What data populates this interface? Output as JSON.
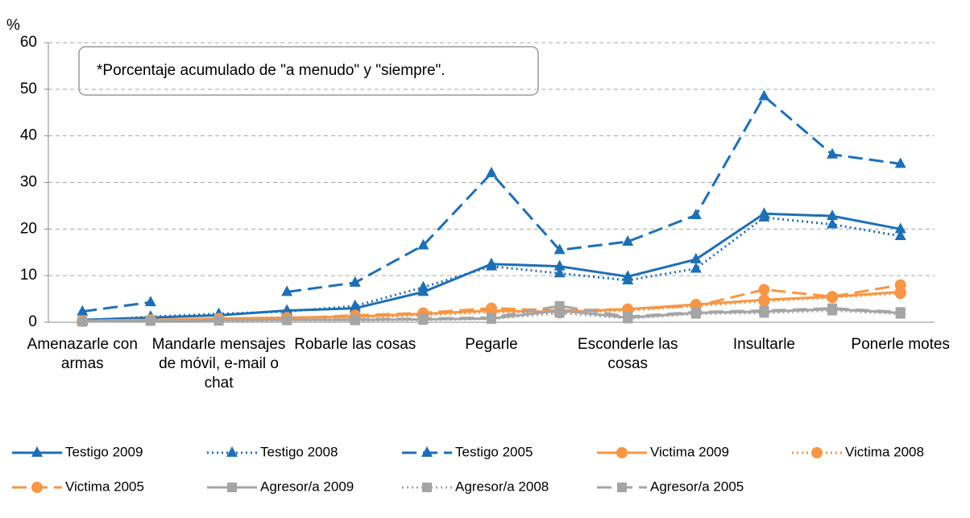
{
  "chart_data": {
    "type": "line",
    "y_label": "%",
    "annotation": "*Porcentaje acumulado de \"a menudo\" y \"siempre\".",
    "categories": [
      "Amenazarle con armas",
      null,
      "Mandarle mensajes de móvil, e-mail o chat",
      null,
      "Robarle las cosas",
      null,
      "Pegarle",
      null,
      "Esconderle las cosas",
      null,
      "Insultarle",
      null,
      "Ponerle motes"
    ],
    "ylim": [
      0,
      60
    ],
    "yticks": [
      0,
      10,
      20,
      30,
      40,
      50,
      60
    ],
    "grid": true,
    "series": [
      {
        "name": "Testigo 2009",
        "color": "#1f6fb4",
        "dash": "solid",
        "marker": "triangle",
        "values": [
          0.5,
          1,
          1.5,
          2.5,
          3,
          6.5,
          12.5,
          12,
          9.8,
          13.5,
          23.3,
          22.8,
          20
        ]
      },
      {
        "name": "Testigo 2008",
        "color": "#1f6fb4",
        "dash": "dotted",
        "marker": "triangle",
        "values": [
          0.3,
          1.2,
          1.8,
          2.3,
          3.5,
          7.5,
          12,
          10.5,
          9,
          11.5,
          22.5,
          21,
          18.5
        ]
      },
      {
        "name": "Testigo 2005",
        "color": "#1f6fb4",
        "dash": "dashed",
        "marker": "triangle",
        "values": [
          2.3,
          4.3,
          null,
          6.5,
          8.5,
          16.5,
          32,
          15.5,
          17.3,
          23,
          48.5,
          36,
          34
        ]
      },
      {
        "name": "Victima 2009",
        "color": "#f79646",
        "dash": "solid",
        "marker": "circle",
        "values": [
          0.3,
          0.5,
          0.8,
          1,
          1.2,
          1.8,
          2.5,
          2.2,
          2.8,
          3.8,
          4.8,
          5.5,
          6.5
        ]
      },
      {
        "name": "Victima 2008",
        "color": "#f79646",
        "dash": "dotted",
        "marker": "circle",
        "values": [
          0.2,
          0.4,
          0.6,
          0.8,
          1,
          1.5,
          2.2,
          2,
          2.5,
          3.5,
          4.5,
          5.3,
          6.2
        ]
      },
      {
        "name": "Victima 2005",
        "color": "#f79646",
        "dash": "dashed",
        "marker": "circle",
        "values": [
          0.3,
          0.5,
          0.6,
          0.8,
          1.5,
          2,
          3,
          2.5,
          2.8,
          3.5,
          7,
          5.5,
          8
        ]
      },
      {
        "name": "Agresor/a 2009",
        "color": "#a5a5a5",
        "dash": "solid",
        "marker": "square",
        "values": [
          0.2,
          0.3,
          0.4,
          0.5,
          0.5,
          0.6,
          0.8,
          2.5,
          1,
          2,
          2.3,
          2.8,
          2
        ]
      },
      {
        "name": "Agresor/a 2008",
        "color": "#a5a5a5",
        "dash": "dotted",
        "marker": "square",
        "values": [
          0.1,
          0.3,
          0.3,
          0.4,
          0.4,
          0.5,
          0.7,
          2,
          0.8,
          1.8,
          2,
          2.5,
          1.8
        ]
      },
      {
        "name": "Agresor/a 2005",
        "color": "#a5a5a5",
        "dash": "dashed",
        "marker": "square",
        "values": [
          0.2,
          0.3,
          0.5,
          0.5,
          0.6,
          0.8,
          1,
          3.5,
          1.2,
          2.2,
          2.5,
          3,
          2.2
        ]
      }
    ]
  }
}
